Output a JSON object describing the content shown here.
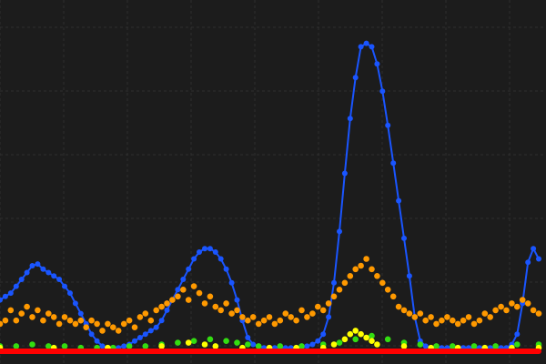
{
  "chart_data": {
    "type": "scatter",
    "background": "#1c1c1c",
    "grid": true,
    "grid_color": "#2e2e2e",
    "legend": "none",
    "x_range": [
      0,
      100
    ],
    "y_range": [
      0,
      100
    ],
    "series": [
      {
        "color": "#1a55ff",
        "style": "line+markers",
        "points": [
          [
            0,
            15
          ],
          [
            1,
            16
          ],
          [
            2,
            17
          ],
          [
            3,
            19
          ],
          [
            4,
            21
          ],
          [
            5,
            23
          ],
          [
            6,
            25
          ],
          [
            7,
            25.5
          ],
          [
            8,
            24
          ],
          [
            9,
            23
          ],
          [
            10,
            22
          ],
          [
            11,
            21
          ],
          [
            12,
            19
          ],
          [
            13,
            17
          ],
          [
            14,
            14
          ],
          [
            15,
            11
          ],
          [
            16,
            8
          ],
          [
            17,
            5
          ],
          [
            18,
            3
          ],
          [
            19,
            1.5
          ],
          [
            20,
            1
          ],
          [
            21,
            1
          ],
          [
            22,
            1
          ],
          [
            23,
            1.5
          ],
          [
            24,
            2
          ],
          [
            25,
            3
          ],
          [
            26,
            4
          ],
          [
            27,
            5
          ],
          [
            28,
            6
          ],
          [
            29,
            7
          ],
          [
            30,
            9
          ],
          [
            31,
            12
          ],
          [
            32,
            15
          ],
          [
            33,
            18
          ],
          [
            34,
            21
          ],
          [
            35,
            24
          ],
          [
            36,
            27
          ],
          [
            37,
            29
          ],
          [
            38,
            30
          ],
          [
            39,
            30
          ],
          [
            40,
            29
          ],
          [
            41,
            27
          ],
          [
            42,
            24
          ],
          [
            43,
            20
          ],
          [
            44,
            15
          ],
          [
            45,
            9
          ],
          [
            46,
            4
          ],
          [
            47,
            2
          ],
          [
            48,
            1.5
          ],
          [
            49,
            1
          ],
          [
            50,
            1
          ],
          [
            51,
            1
          ],
          [
            52,
            1
          ],
          [
            53,
            1
          ],
          [
            54,
            1
          ],
          [
            55,
            1
          ],
          [
            56,
            1
          ],
          [
            57,
            1.5
          ],
          [
            58,
            2
          ],
          [
            59,
            3
          ],
          [
            60,
            5
          ],
          [
            61,
            10
          ],
          [
            62,
            20
          ],
          [
            63,
            35
          ],
          [
            64,
            52
          ],
          [
            65,
            68
          ],
          [
            66,
            80
          ],
          [
            67,
            89
          ],
          [
            68,
            90
          ],
          [
            69,
            89
          ],
          [
            70,
            84
          ],
          [
            71,
            76
          ],
          [
            72,
            66
          ],
          [
            73,
            55
          ],
          [
            74,
            44
          ],
          [
            75,
            33
          ],
          [
            76,
            22
          ],
          [
            77,
            10
          ],
          [
            78,
            3
          ],
          [
            79,
            1.5
          ],
          [
            80,
            1
          ],
          [
            81,
            1
          ],
          [
            82,
            1
          ],
          [
            83,
            1
          ],
          [
            84,
            1
          ],
          [
            85,
            1
          ],
          [
            86,
            1
          ],
          [
            87,
            1
          ],
          [
            88,
            1
          ],
          [
            89,
            1
          ],
          [
            90,
            1
          ],
          [
            91,
            1
          ],
          [
            92,
            1
          ],
          [
            93,
            1
          ],
          [
            94,
            1
          ],
          [
            95,
            2
          ],
          [
            96,
            5
          ],
          [
            97,
            14
          ],
          [
            98,
            26
          ],
          [
            99,
            30
          ],
          [
            100,
            27
          ]
        ]
      },
      {
        "color": "#ff9900",
        "style": "markers",
        "points": [
          [
            0,
            8
          ],
          [
            1,
            9
          ],
          [
            2,
            12
          ],
          [
            3,
            9
          ],
          [
            4,
            11
          ],
          [
            5,
            13
          ],
          [
            6,
            10
          ],
          [
            7,
            12
          ],
          [
            8,
            9
          ],
          [
            9,
            11
          ],
          [
            10,
            10
          ],
          [
            11,
            8
          ],
          [
            12,
            10
          ],
          [
            13,
            9
          ],
          [
            14,
            8
          ],
          [
            15,
            9
          ],
          [
            16,
            7
          ],
          [
            17,
            9
          ],
          [
            18,
            8
          ],
          [
            19,
            6
          ],
          [
            20,
            8
          ],
          [
            21,
            7
          ],
          [
            22,
            6
          ],
          [
            23,
            8
          ],
          [
            24,
            9
          ],
          [
            25,
            7
          ],
          [
            26,
            10
          ],
          [
            27,
            11
          ],
          [
            28,
            9
          ],
          [
            29,
            12
          ],
          [
            30,
            13
          ],
          [
            31,
            14
          ],
          [
            32,
            15
          ],
          [
            33,
            16
          ],
          [
            34,
            18
          ],
          [
            35,
            15
          ],
          [
            36,
            19
          ],
          [
            37,
            17
          ],
          [
            38,
            14
          ],
          [
            39,
            16
          ],
          [
            40,
            13
          ],
          [
            41,
            12
          ],
          [
            42,
            14
          ],
          [
            43,
            11
          ],
          [
            44,
            12
          ],
          [
            45,
            10
          ],
          [
            46,
            9
          ],
          [
            47,
            10
          ],
          [
            48,
            8
          ],
          [
            49,
            9
          ],
          [
            50,
            10
          ],
          [
            51,
            8
          ],
          [
            52,
            9
          ],
          [
            53,
            11
          ],
          [
            54,
            10
          ],
          [
            55,
            9
          ],
          [
            56,
            12
          ],
          [
            57,
            10
          ],
          [
            58,
            11
          ],
          [
            59,
            13
          ],
          [
            60,
            12
          ],
          [
            61,
            14
          ],
          [
            62,
            16
          ],
          [
            63,
            18
          ],
          [
            64,
            20
          ],
          [
            65,
            22
          ],
          [
            66,
            24
          ],
          [
            67,
            25
          ],
          [
            68,
            27
          ],
          [
            69,
            24
          ],
          [
            70,
            22
          ],
          [
            71,
            20
          ],
          [
            72,
            18
          ],
          [
            73,
            16
          ],
          [
            74,
            13
          ],
          [
            75,
            12
          ],
          [
            76,
            11
          ],
          [
            77,
            10
          ],
          [
            78,
            11
          ],
          [
            79,
            9
          ],
          [
            80,
            10
          ],
          [
            81,
            8
          ],
          [
            82,
            9
          ],
          [
            83,
            10
          ],
          [
            84,
            9
          ],
          [
            85,
            8
          ],
          [
            86,
            9
          ],
          [
            87,
            10
          ],
          [
            88,
            8
          ],
          [
            89,
            9
          ],
          [
            90,
            11
          ],
          [
            91,
            10
          ],
          [
            92,
            12
          ],
          [
            93,
            13
          ],
          [
            94,
            12
          ],
          [
            95,
            14
          ],
          [
            96,
            13
          ],
          [
            97,
            15
          ],
          [
            98,
            14
          ],
          [
            99,
            12
          ],
          [
            100,
            11
          ]
        ]
      },
      {
        "color": "#ffff00",
        "style": "markers",
        "points": [
          [
            0,
            1
          ],
          [
            10,
            1
          ],
          [
            20,
            1
          ],
          [
            30,
            1.5
          ],
          [
            35,
            2.5
          ],
          [
            38,
            2
          ],
          [
            40,
            1.5
          ],
          [
            45,
            1
          ],
          [
            50,
            1
          ],
          [
            55,
            1
          ],
          [
            60,
            1
          ],
          [
            62,
            2
          ],
          [
            64,
            3.5
          ],
          [
            65,
            5
          ],
          [
            66,
            6
          ],
          [
            67,
            5
          ],
          [
            68,
            4
          ],
          [
            69,
            3
          ],
          [
            70,
            2
          ],
          [
            75,
            1.5
          ],
          [
            80,
            1
          ],
          [
            85,
            1
          ],
          [
            90,
            1
          ],
          [
            95,
            1
          ],
          [
            100,
            1
          ]
        ]
      },
      {
        "color": "#33dd11",
        "style": "markers",
        "points": [
          [
            0,
            1.5
          ],
          [
            3,
            1.5
          ],
          [
            6,
            2
          ],
          [
            9,
            1.5
          ],
          [
            12,
            1.5
          ],
          [
            15,
            1
          ],
          [
            18,
            1
          ],
          [
            21,
            1
          ],
          [
            24,
            1.5
          ],
          [
            27,
            1.5
          ],
          [
            30,
            2
          ],
          [
            33,
            2.5
          ],
          [
            36,
            3
          ],
          [
            39,
            3.5
          ],
          [
            42,
            3
          ],
          [
            44,
            2.5
          ],
          [
            46,
            2
          ],
          [
            48,
            1.5
          ],
          [
            52,
            1.5
          ],
          [
            56,
            1.5
          ],
          [
            60,
            2
          ],
          [
            63,
            2.5
          ],
          [
            66,
            3.5
          ],
          [
            69,
            4.5
          ],
          [
            72,
            3.5
          ],
          [
            75,
            2.5
          ],
          [
            78,
            2
          ],
          [
            81,
            1.5
          ],
          [
            84,
            1.5
          ],
          [
            88,
            1.5
          ],
          [
            92,
            1.5
          ],
          [
            96,
            2
          ],
          [
            100,
            2
          ]
        ]
      },
      {
        "color": "#ff0000",
        "style": "line+markers",
        "points": [
          [
            0,
            0
          ],
          [
            10,
            0
          ],
          [
            20,
            0
          ],
          [
            30,
            0
          ],
          [
            40,
            0
          ],
          [
            50,
            0
          ],
          [
            60,
            0
          ],
          [
            70,
            0
          ],
          [
            80,
            0
          ],
          [
            90,
            0
          ],
          [
            100,
            0
          ]
        ]
      }
    ]
  }
}
